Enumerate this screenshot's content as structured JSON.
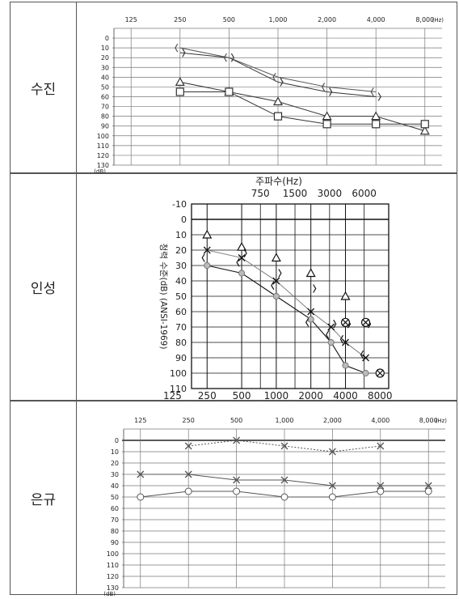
{
  "rows": [
    {
      "label": "수진",
      "chart_data": {
        "type": "line",
        "x_ticks": [
          "125",
          "250",
          "500",
          "1,000",
          "2,000",
          "4,000",
          "8,000"
        ],
        "x_unit": "(Hz)",
        "y_ticks": [
          "0",
          "10",
          "20",
          "30",
          "40",
          "50",
          "60",
          "70",
          "80",
          "90",
          "100",
          "110",
          "120",
          "130"
        ],
        "y_unit": "(dB)",
        "ylim": [
          -10,
          130
        ],
        "series": [
          {
            "marker": "bracket-right",
            "x": [
              250,
              500,
              1000,
              2000,
              4000
            ],
            "y": [
              15,
              20,
              45,
              55,
              60
            ],
            "color": "#333333"
          },
          {
            "marker": "bracket-left",
            "x": [
              250,
              500,
              1000,
              2000,
              4000
            ],
            "y": [
              10,
              20,
              40,
              50,
              55
            ],
            "color": "#555555"
          },
          {
            "marker": "triangle",
            "x": [
              250,
              500,
              1000,
              2000,
              4000,
              8000
            ],
            "y": [
              45,
              55,
              65,
              80,
              80,
              95
            ],
            "color": "#333333"
          },
          {
            "marker": "square",
            "x": [
              250,
              500,
              1000,
              2000,
              4000,
              8000
            ],
            "y": [
              55,
              55,
              80,
              88,
              88,
              88
            ],
            "color": "#333333"
          }
        ]
      }
    },
    {
      "label": "인성",
      "chart_data": {
        "type": "line",
        "title": "주파수(Hz)",
        "top_ticks": [
          "750",
          "1500",
          "3000",
          "6000"
        ],
        "x_ticks": [
          "125",
          "250",
          "500",
          "1000",
          "2000",
          "4000",
          "8000"
        ],
        "y_ticks": [
          "-10",
          "0",
          "10",
          "20",
          "30",
          "40",
          "50",
          "60",
          "70",
          "80",
          "90",
          "100",
          "110"
        ],
        "ylabel": "청력 수준(dB) (ANSI-1969)",
        "ylim": [
          -10,
          110
        ],
        "series": [
          {
            "marker": "x",
            "x": [
              250,
              500,
              1000,
              2000,
              3000,
              4000,
              6000
            ],
            "y": [
              20,
              25,
              40,
              60,
              70,
              80,
              90
            ],
            "color": "#111111"
          },
          {
            "marker": "circle",
            "x": [
              250,
              500,
              1000,
              2000,
              3000,
              4000,
              6000
            ],
            "y": [
              30,
              35,
              50,
              65,
              80,
              95,
              100
            ],
            "color": "#888888"
          },
          {
            "marker": "caret",
            "x": [
              250,
              500,
              1000,
              2000,
              4000
            ],
            "y": [
              10,
              18,
              25,
              35,
              50
            ],
            "color": "#111111"
          },
          {
            "marker": "bracket-left",
            "x": [
              250,
              500,
              1000,
              2000,
              3000,
              4000,
              6000
            ],
            "y": [
              25,
              28,
              43,
              67,
              75,
              78,
              88
            ],
            "color": "#111111"
          },
          {
            "marker": "bracket-right",
            "x": [
              500,
              1000,
              2000,
              3000,
              4000,
              6000
            ],
            "y": [
              22,
              35,
              45,
              68,
              68,
              68
            ],
            "color": "#111111"
          },
          {
            "marker": "masked",
            "x": [
              4000,
              6000,
              8000
            ],
            "y": [
              67,
              67,
              100
            ],
            "color": "#111111"
          }
        ]
      }
    },
    {
      "label": "은규",
      "chart_data": {
        "type": "line",
        "x_ticks": [
          "125",
          "250",
          "500",
          "1,000",
          "2,000",
          "4,000",
          "8,000"
        ],
        "x_unit": "(Hz)",
        "y_ticks": [
          "0",
          "10",
          "20",
          "30",
          "40",
          "50",
          "60",
          "70",
          "80",
          "90",
          "100",
          "110",
          "120",
          "130"
        ],
        "y_unit": "(dB)",
        "ylim": [
          -10,
          130
        ],
        "series": [
          {
            "marker": "x-dotted",
            "x": [
              250,
              500,
              1000,
              2000,
              4000
            ],
            "y": [
              5,
              0,
              5,
              10,
              5
            ],
            "color": "#555555"
          },
          {
            "marker": "x",
            "x": [
              125,
              250,
              500,
              1000,
              2000,
              4000,
              8000
            ],
            "y": [
              30,
              30,
              35,
              35,
              40,
              40,
              40
            ],
            "color": "#555555"
          },
          {
            "marker": "circle-open",
            "x": [
              125,
              250,
              500,
              1000,
              2000,
              4000,
              8000
            ],
            "y": [
              50,
              45,
              45,
              50,
              50,
              45,
              45
            ],
            "color": "#555555"
          }
        ]
      }
    }
  ]
}
